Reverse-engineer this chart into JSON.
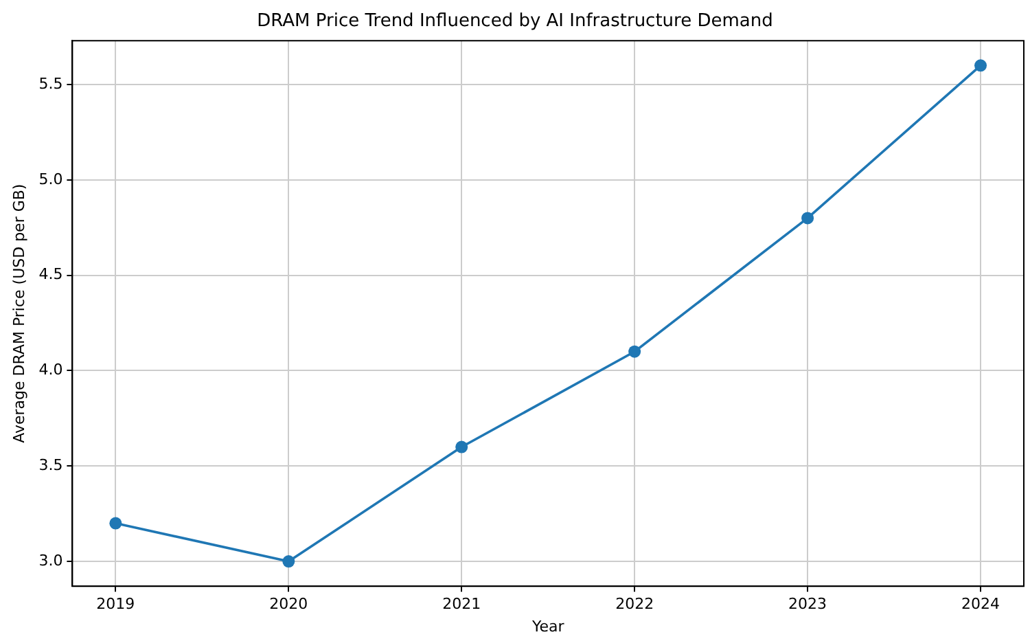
{
  "chart_data": {
    "type": "line",
    "title": "DRAM Price Trend Influenced by AI Infrastructure Demand",
    "xlabel": "Year",
    "ylabel": "Average DRAM Price (USD per GB)",
    "x": [
      2019,
      2020,
      2021,
      2022,
      2023,
      2024
    ],
    "series": [
      {
        "color": "#1f77b4",
        "values": [
          3.2,
          3.0,
          3.6,
          4.1,
          4.8,
          5.6
        ]
      }
    ],
    "xlim": [
      2018.75,
      2024.25
    ],
    "xticks": [
      2019,
      2020,
      2021,
      2022,
      2023,
      2024
    ],
    "ylim": [
      2.87,
      5.73
    ],
    "yticks": [
      {
        "value": 3,
        "label": "3.0"
      },
      3.5,
      {
        "value": 4,
        "label": "4.0"
      },
      4.5,
      {
        "value": 5,
        "label": "5.0"
      },
      5.5
    ],
    "grid": true,
    "marker": "circle",
    "line_style": "solid"
  }
}
